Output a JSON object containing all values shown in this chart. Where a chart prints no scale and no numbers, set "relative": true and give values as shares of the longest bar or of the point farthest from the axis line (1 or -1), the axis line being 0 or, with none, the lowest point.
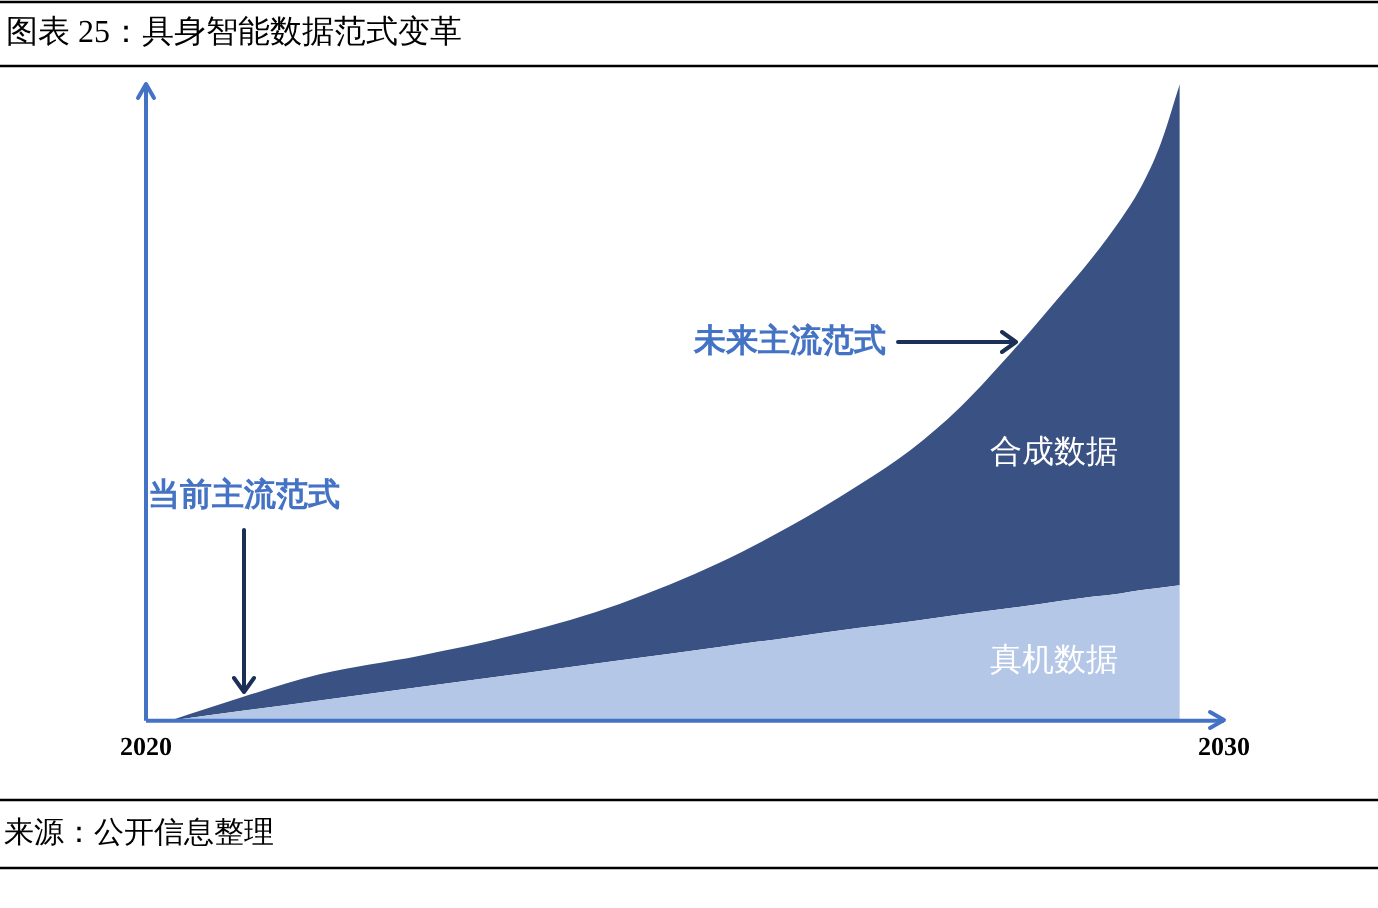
{
  "chart_data": {
    "type": "area",
    "title": "图表 25：具身智能数据范式变革",
    "stacked": true,
    "relative": true,
    "marker": "none",
    "grid": false,
    "tick_labels": "x",
    "x": [
      2020.22,
      2020.91,
      2021.61,
      2022.54,
      2023.47,
      2024.4,
      2025.32,
      2025.97,
      2026.62,
      2027.09,
      2027.55,
      2028.11,
      2028.48,
      2028.79,
      2029.04,
      2029.22,
      2029.41,
      2029.59
    ],
    "series": [
      {
        "name": "真机数据",
        "color": "#b4c7e7",
        "values": [
          0,
          0.016,
          0.032,
          0.053,
          0.074,
          0.095,
          0.116,
          0.131,
          0.146,
          0.156,
          0.167,
          0.179,
          0.188,
          0.195,
          0.2,
          0.205,
          0.209,
          0.213
        ]
      },
      {
        "name": "合成数据",
        "color": "#3a5184",
        "values": [
          0,
          0.022,
          0.041,
          0.049,
          0.063,
          0.089,
          0.132,
          0.174,
          0.225,
          0.269,
          0.325,
          0.415,
          0.479,
          0.535,
          0.587,
          0.63,
          0.696,
          0.787
        ]
      }
    ],
    "xlim": [
      2020,
      2030
    ],
    "xticks": [
      2020,
      2030
    ],
    "annotations": [
      {
        "text": "当前主流范式",
        "x": 2020.91,
        "y": 0.038
      },
      {
        "text": "未来主流范式",
        "x": 2028.11,
        "y": 0.594
      },
      "来源：公开信息整理"
    ]
  }
}
